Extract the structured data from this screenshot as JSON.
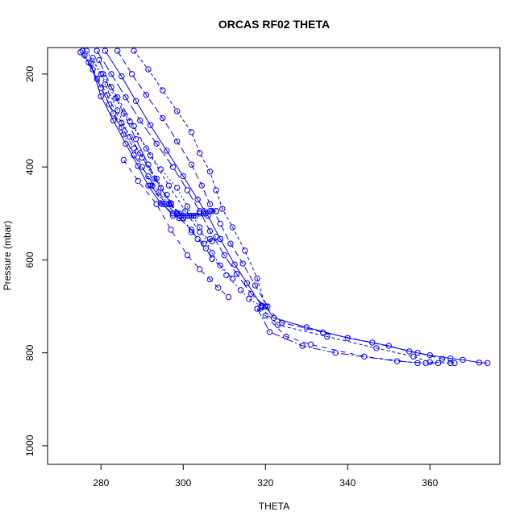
{
  "chart_data": {
    "type": "line",
    "title": "ORCAS RF02 THETA",
    "xlabel": "THETA",
    "ylabel": "Pressure (mbar)",
    "xlim": [
      267,
      377
    ],
    "ylim": [
      1040,
      143
    ],
    "y_inverted": true,
    "x_ticks": [
      280,
      300,
      320,
      340,
      360
    ],
    "y_ticks": [
      200,
      400,
      600,
      800,
      1000
    ],
    "grid": false,
    "marker": "open-circle",
    "series_color": "#0000ff",
    "series": [
      {
        "x": [
          320.0,
          322.0,
          330.0,
          340.0,
          350.0,
          355.0,
          360.0,
          365.0,
          368.0,
          372.0,
          374.0
        ],
        "y": [
          700,
          725,
          745,
          768,
          785,
          797,
          805,
          812,
          815,
          821,
          822
        ]
      },
      {
        "x": [
          320.0,
          324.0,
          334.0,
          346.0,
          357.0,
          363.0,
          366.0
        ],
        "y": [
          700,
          735,
          756,
          778,
          800,
          813,
          822
        ]
      },
      {
        "x": [
          319.0,
          323.0,
          335.0,
          347.0,
          356.0,
          360.0,
          365.0
        ],
        "y": [
          703,
          740,
          765,
          790,
          808,
          820,
          822
        ]
      },
      {
        "x": [
          318.0,
          321.0,
          329.0,
          337.0,
          352.0,
          359.0,
          362.0
        ],
        "y": [
          705,
          755,
          785,
          800,
          818,
          822,
          822
        ]
      },
      {
        "x": [
          318.0,
          320.0,
          325.0,
          331.0,
          344.0,
          357.0
        ],
        "y": [
          705,
          720,
          765,
          782,
          808,
          822
        ]
      },
      {
        "x": [
          276.5,
          280.0,
          283.5,
          287.0,
          291.0,
          294.5,
          298.5,
          301.0,
          304.0,
          307.0,
          310.5,
          314.0,
          316.0,
          319.0
        ],
        "y": [
          150,
          200,
          252,
          302,
          360,
          405,
          445,
          485,
          530,
          585,
          633,
          665,
          684,
          700
        ]
      },
      {
        "x": [
          279.0,
          282.5,
          286.0,
          289.5,
          293.5,
          297.5,
          301.0,
          304.0,
          306.5,
          310.0,
          313.0,
          316.5,
          320.0
        ],
        "y": [
          150,
          200,
          250,
          300,
          350,
          400,
          450,
          495,
          538,
          590,
          630,
          673,
          700
        ]
      },
      {
        "x": [
          281.0,
          285.0,
          288.5,
          292.0,
          296.0,
          300.0,
          303.5,
          306.0,
          309.0,
          312.5,
          315.5,
          319.0
        ],
        "y": [
          150,
          205,
          258,
          310,
          365,
          420,
          470,
          505,
          555,
          610,
          650,
          698
        ]
      },
      {
        "x": [
          284.0,
          287.5,
          291.0,
          295.0,
          298.5,
          302.0,
          304.5,
          306.5,
          309.0,
          311.5,
          314.5,
          317.5,
          320.5
        ],
        "y": [
          150,
          200,
          245,
          295,
          345,
          395,
          440,
          480,
          522,
          565,
          608,
          655,
          700
        ]
      },
      {
        "x": [
          288.0,
          291.5,
          295.0,
          298.5,
          302.0,
          304.0,
          306.5,
          308.0,
          309.5,
          312.0,
          315.0,
          318.0,
          320.0
        ],
        "y": [
          150,
          190,
          235,
          280,
          325,
          370,
          410,
          450,
          490,
          530,
          580,
          640,
          700
        ]
      },
      {
        "x": [
          275.0,
          277.0,
          280.0,
          283.0,
          285.5,
          288.0,
          291.5,
          294.0,
          296.5,
          299.0,
          301.5,
          303.0,
          305.0,
          307.0
        ],
        "y": [
          153,
          175,
          230,
          285,
          330,
          375,
          420,
          455,
          480,
          500,
          505,
          505,
          495,
          495
        ]
      },
      {
        "x": [
          276.0,
          279.0,
          282.0,
          285.0,
          288.0,
          290.0,
          292.5,
          295.0,
          297.5,
          300.0,
          302.0,
          305.0,
          308.0
        ],
        "y": [
          160,
          210,
          265,
          315,
          360,
          400,
          440,
          480,
          505,
          510,
          505,
          500,
          495
        ]
      },
      {
        "x": [
          278.0,
          281.0,
          284.0,
          287.0,
          290.0,
          293.5,
          296.0,
          298.5,
          301.0,
          304.0,
          306.5
        ],
        "y": [
          165,
          222,
          278,
          335,
          380,
          425,
          460,
          500,
          505,
          500,
          495
        ]
      },
      {
        "x": [
          279.5,
          282.5,
          285.5,
          288.5,
          291.5,
          294.5,
          297.0,
          299.5,
          302.5,
          305.5,
          308.0
        ],
        "y": [
          170,
          228,
          285,
          340,
          395,
          445,
          480,
          505,
          505,
          500,
          495
        ]
      },
      {
        "x": [
          277.5,
          280.0,
          283.0,
          286.0,
          289.0,
          291.5,
          294.5,
          297.5,
          299.0
        ],
        "y": [
          178,
          248,
          300,
          350,
          398,
          440,
          478,
          500,
          505
        ]
      },
      {
        "x": [
          275.5,
          278.0,
          281.5,
          285.0,
          289.5,
          293.0,
          297.0,
          300.0,
          302.0,
          305.0,
          306.5,
          308.0
        ],
        "y": [
          150,
          190,
          245,
          305,
          370,
          425,
          478,
          510,
          540,
          565,
          555,
          550
        ]
      },
      {
        "x": [
          280.5,
          284.0,
          288.0,
          292.0,
          296.5,
          300.5,
          304.0,
          307.0,
          309.0
        ],
        "y": [
          200,
          250,
          312,
          375,
          440,
          495,
          540,
          560,
          555
        ]
      },
      {
        "x": [
          292.0,
          296.0,
          299.0,
          302.0,
          303.5,
          305.5,
          307.0,
          309.0,
          312.0
        ],
        "y": [
          440,
          480,
          510,
          535,
          555,
          575,
          598,
          612,
          640
        ]
      },
      {
        "x": [
          285.5,
          289.0,
          293.5,
          297.0,
          301.0,
          304.0,
          306.5,
          308.5,
          311.0
        ],
        "y": [
          385,
          430,
          480,
          535,
          590,
          620,
          642,
          660,
          680
        ]
      }
    ]
  }
}
